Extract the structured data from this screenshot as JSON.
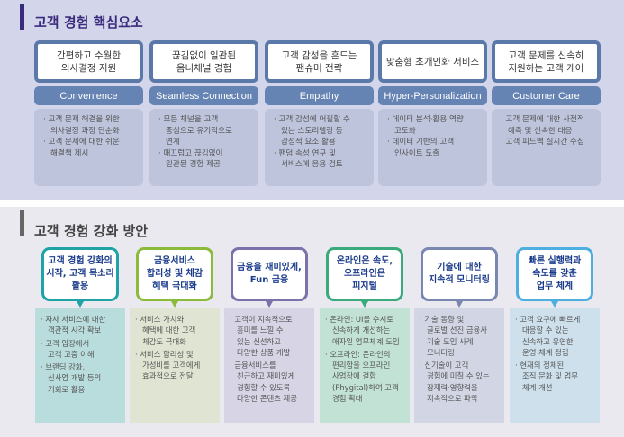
{
  "top": {
    "title": "고객 경험 핵심요소",
    "color": "#3a2a7c",
    "columns": [
      {
        "header": "간편하고 수월한\n의사결정 지원",
        "label": "Convenience",
        "items": [
          "· 고객 문제 해결을 위한\n의사결정 과정 단순화",
          "· 고객 문제에 대한 쉬운\n해결책 제시"
        ]
      },
      {
        "header": "끊김없이 일관된\n옴니채널 경험",
        "label": "Seamless Connection",
        "items": [
          "· 모든 채널을 고객\n중심으로 유기적으로\n연계",
          "· 매끄럽고 끊김없이\n일관된 경험 제공"
        ]
      },
      {
        "header": "고객 감성을 흔드는\n팬슈머 전략",
        "label": "Empathy",
        "items": [
          "· 고객 감성에 어필할 수\n있는 스토리텔링 등\n감성적 요소 활용",
          "· 팬덤 속성 연구 및\n서비스에 응용 검토"
        ]
      },
      {
        "header": "맞춤형 초개인화 서비스",
        "label": "Hyper-Personalization",
        "items": [
          "· 데이터 분석·활용 역량\n고도화",
          "· 데이터 기반의 고객\n인사이트 도출"
        ]
      },
      {
        "header": "고객 문제를 신속히\n지원하는 고객 케어",
        "label": "Customer Care",
        "items": [
          "· 고객 문제에 대한 사전적\n예측 및 신속한 대응",
          "· 고객 피드백 실시간 수집"
        ]
      }
    ]
  },
  "bottom": {
    "title": "고객 경험 강화 방안",
    "columns": [
      {
        "header": "고객 경험 강화의\n시작, 고객 목소리\n활용",
        "color": "#1fa3a7",
        "bg": "#b9dcdc",
        "items": [
          "· 자사 서비스에 대한\n객관적 시각 확보",
          "· 고객 입장에서\n고객 고충 이해",
          "· 브랜딩 강화,\n신사업 개발 등의\n기회로 활용"
        ]
      },
      {
        "header": "금융서비스\n합리성 및 체감\n혜택 극대화",
        "color": "#8cbb3c",
        "bg": "#dfe5d2",
        "items": [
          "· 서비스 가치와\n혜택에 대한 고객\n체감도 극대화",
          "· 서비스 합리성 및\n가성비를 고객에게\n효과적으로 전달"
        ]
      },
      {
        "header": "금융을 재미있게,\nFun 금융",
        "color": "#7c72ab",
        "bg": "#d7d5e5",
        "items": [
          "· 고객이 지속적으로\n흥미를 느낄 수\n있는 신선하고\n다양한 상품 개발",
          "· 금융서비스를\n친근하고 재미있게\n경험할 수 있도록\n다양한 콘텐츠 제공"
        ]
      },
      {
        "header": "온라인은 속도,\n오프라인은\n피지털",
        "color": "#3aa97c",
        "bg": "#c3e2d6",
        "items": [
          "· 온라인: UI를 수시로\n신속하게 개선하는\n애자일 업무체계 도입",
          "· 오프라인: 온라인의\n편리함을 오프라인\n사업장에 결합\n(Phygital)하여 고객\n경험 확대"
        ]
      },
      {
        "header": "기술에 대한\n지속적 모니터링",
        "color": "#7a87b1",
        "bg": "#d2d6e4",
        "items": [
          "· 기술 동향 및\n글로벌 선진 금융사\n기술 도입 사례\n모니터링",
          "· 신기술이 고객\n경험에 미칠 수 있는\n잠재력·영향력을\n지속적으로 파악"
        ]
      },
      {
        "header": "빠른 실행력과\n속도를 갖춘\n업무 체계",
        "color": "#4eaedf",
        "bg": "#cde0ec",
        "items": [
          "· 고객 요구에 빠르게\n대응할 수 있는\n신속하고 유연한\n운영 체계 정립",
          "· 현재의 정체된\n조직 문화 및 업무\n체계 개선"
        ]
      }
    ]
  }
}
